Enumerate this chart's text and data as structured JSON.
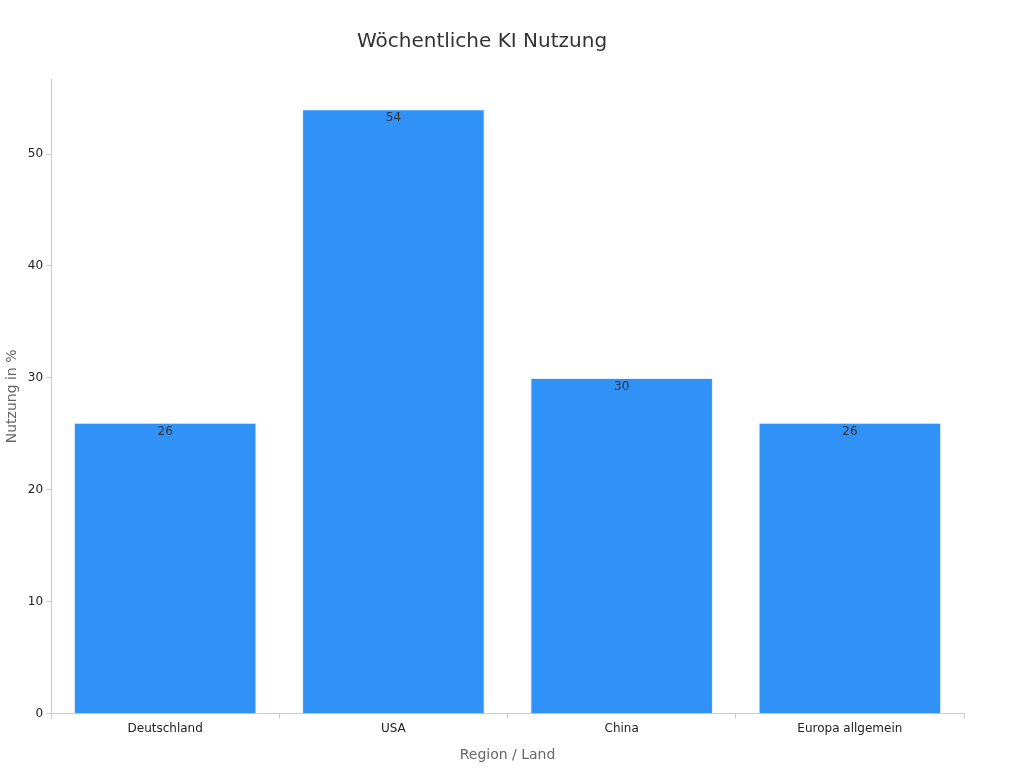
{
  "chart_data": {
    "type": "bar",
    "title": "Wöchentliche KI Nutzung",
    "xlabel": "Region / Land",
    "ylabel": "Nutzung in %",
    "categories": [
      "Deutschland",
      "USA",
      "China",
      "Europa allgemein"
    ],
    "values": [
      26,
      54,
      30,
      26
    ],
    "color": "#3092f7",
    "ylim": [
      0,
      56.7
    ],
    "yticks": [
      0,
      10,
      20,
      30,
      40,
      50
    ],
    "grid": false,
    "data_labels": true
  }
}
